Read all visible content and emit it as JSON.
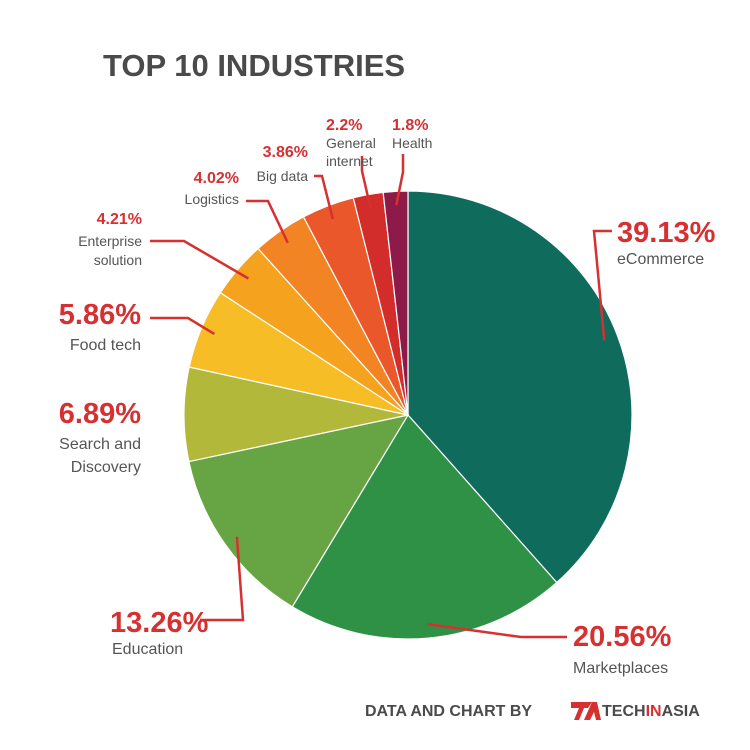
{
  "chart_data": {
    "type": "pie",
    "title": "TOP 10 INDUSTRIES",
    "slices": [
      {
        "percent_label": "39.13%",
        "label_lines": [
          "eCommerce"
        ],
        "value": 39.13,
        "color": "#0f6b5b"
      },
      {
        "percent_label": "20.56%",
        "label_lines": [
          "Marketplaces"
        ],
        "value": 20.56,
        "color": "#2f9145"
      },
      {
        "percent_label": "13.26%",
        "label_lines": [
          "Education"
        ],
        "value": 13.26,
        "color": "#67a443"
      },
      {
        "percent_label": "6.89%",
        "label_lines": [
          "Search and",
          "Discovery"
        ],
        "value": 6.89,
        "color": "#b2b83a"
      },
      {
        "percent_label": "5.86%",
        "label_lines": [
          "Food tech"
        ],
        "value": 5.86,
        "color": "#f6bd27"
      },
      {
        "percent_label": "4.21%",
        "label_lines": [
          "Enterprise",
          "solution"
        ],
        "value": 4.21,
        "color": "#f5a21e"
      },
      {
        "percent_label": "4.02%",
        "label_lines": [
          "Logistics"
        ],
        "value": 4.02,
        "color": "#f28424"
      },
      {
        "percent_label": "3.86%",
        "label_lines": [
          "Big data"
        ],
        "value": 3.86,
        "color": "#ea572b"
      },
      {
        "percent_label": "2.2%",
        "label_lines": [
          "General",
          "internet"
        ],
        "value": 2.2,
        "color": "#d22d2b"
      },
      {
        "percent_label": "1.8%",
        "label_lines": [
          "Health"
        ],
        "value": 1.8,
        "color": "#8e1a4a"
      }
    ],
    "leader_color": "#d63031",
    "label_color": "#d63031"
  },
  "credit": {
    "text": "DATA AND CHART BY",
    "brand_left": "TECH",
    "brand_mid": "IN",
    "brand_right": "ASIA",
    "brand_color": "#d63031"
  }
}
